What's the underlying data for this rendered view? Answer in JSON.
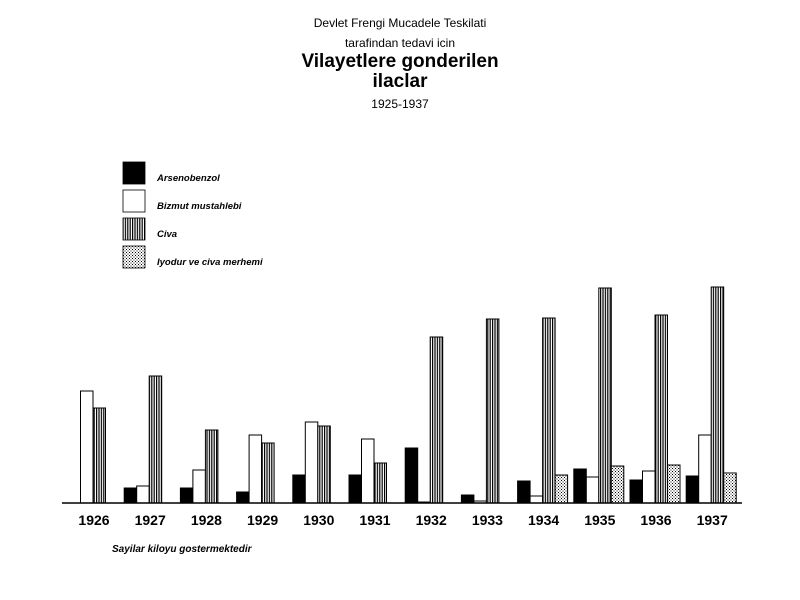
{
  "header": {
    "line1": "Devlet Frengi Mucadele Teskilati",
    "line2": "tarafindan tedavi icin",
    "title_line1": "Vilayetlere gonderilen",
    "title_line2": "ilaclar",
    "years": "1925-1937"
  },
  "footnote": "Sayilar kiloyu gostermektedir",
  "chart_data": {
    "type": "bar",
    "title": "Vilayetlere gonderilen ilaclar",
    "subtitle": "1925-1937",
    "xlabel": "",
    "ylabel": "",
    "ylim": [
      0,
      390
    ],
    "grid": false,
    "legend_position": "top-left",
    "categories": [
      "1926",
      "1927",
      "1928",
      "1929",
      "1930",
      "1931",
      "1932",
      "1933",
      "1934",
      "1935",
      "1936",
      "1937"
    ],
    "series": [
      {
        "name": "Arsenobenzol",
        "pattern": "solid",
        "color": "#000000",
        "values": [
          0,
          15,
          15,
          11,
          28,
          28,
          55,
          8,
          22,
          34,
          23,
          27
        ]
      },
      {
        "name": "Bizmut mustahlebi",
        "pattern": "white",
        "color": "#ffffff",
        "values": [
          112,
          17,
          33,
          68,
          81,
          64,
          1,
          2,
          7,
          26,
          32,
          68
        ]
      },
      {
        "name": "Civa",
        "pattern": "vertical-stripes",
        "color": "#000000",
        "values": [
          95,
          127,
          73,
          60,
          77,
          40,
          166,
          184,
          185,
          215,
          188,
          216
        ]
      },
      {
        "name": "Iyodur ve civa merhemi",
        "pattern": "dots",
        "color": "#888888",
        "values": [
          0,
          0,
          0,
          0,
          0,
          0,
          0,
          0,
          28,
          37,
          38,
          30
        ]
      }
    ]
  }
}
